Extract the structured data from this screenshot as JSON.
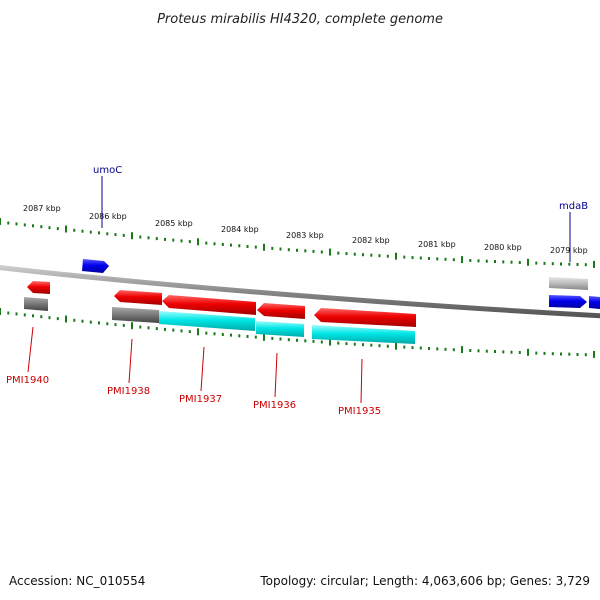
{
  "title": "Proteus mirabilis HI4320, complete genome",
  "footer": {
    "accession": "Accession: NC_010554",
    "summary": "Topology: circular; Length: 4,063,606 bp; Genes: 3,729"
  },
  "scale_labels": [
    "2087 kbp",
    "2086 kbp",
    "2085 kbp",
    "2084 kbp",
    "2083 kbp",
    "2082 kbp",
    "2081 kbp",
    "2080 kbp",
    "2079 kbp"
  ],
  "genes_top": [
    "umoC",
    "mdaB"
  ],
  "genes_bottom": [
    "PMI1940",
    "PMI1938",
    "PMI1937",
    "PMI1936",
    "PMI1935"
  ],
  "colors": {
    "forward": "#0000ee",
    "reverse": "#ee0000",
    "rna": "#00dddd",
    "pseudo": "#777777",
    "pseudo_light": "#bbbbbb",
    "ticks": "#1a7a1a",
    "backbone": "#888888"
  }
}
